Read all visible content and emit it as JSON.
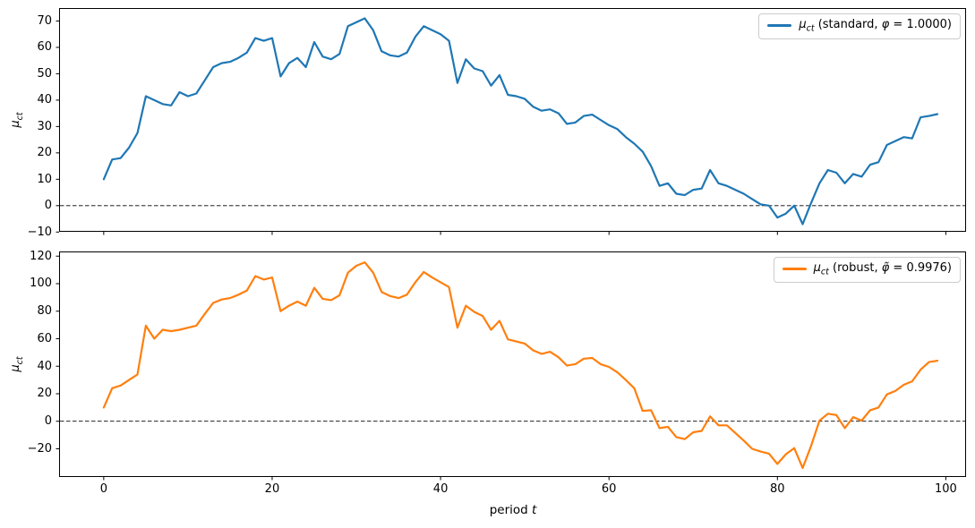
{
  "figure": {
    "background": "#ffffff",
    "text_color": "#000000",
    "axis_color": "#000000"
  },
  "xaxis": {
    "label_pre": "period ",
    "label_var": "t",
    "tick_labels": [
      "0",
      "20",
      "40",
      "60",
      "80",
      "100"
    ]
  },
  "chart_data": [
    {
      "type": "line",
      "title": "",
      "ylabel": "μ_ct",
      "ylabel_parts": {
        "mu": "μ",
        "sub": "ct"
      },
      "xlabel": "period t",
      "legend_label": "μ_ct (standard, φ = 1.0000)",
      "legend_parts": {
        "mu": "μ",
        "sub": "ct",
        "pre": " (standard, ",
        "phi": "φ",
        "post": " = 1.0000)"
      },
      "legend_position": "upper right",
      "grid": false,
      "zero_line": true,
      "zero_line_style": "dashed",
      "x_start": 0,
      "x_step": 1,
      "xlim": [
        -5.3,
        102.4
      ],
      "ylim": [
        -9.9,
        74.9
      ],
      "xticks": [
        0,
        20,
        40,
        60,
        80,
        100
      ],
      "yticks": [
        70,
        60,
        50,
        40,
        30,
        20,
        10,
        0,
        -10
      ],
      "ytick_labels": [
        "70",
        "60",
        "50",
        "40",
        "30",
        "20",
        "10",
        "0",
        "−10"
      ],
      "series": [
        {
          "name": "μ_ct (standard, φ = 1.0000)",
          "color": "#1f77b4",
          "values": [
            10,
            17.5,
            18,
            22,
            27.5,
            41.5,
            40,
            38.5,
            38,
            43,
            41.5,
            42.5,
            47.5,
            52.5,
            54,
            54.5,
            56,
            58,
            63.5,
            62.5,
            63.5,
            49,
            54,
            56,
            52.5,
            62,
            56.5,
            55.5,
            57.5,
            68,
            69.5,
            71,
            66.5,
            58.5,
            57,
            56.5,
            58,
            64,
            68,
            66.5,
            65,
            62.5,
            46.5,
            55.5,
            52,
            51,
            45.5,
            49.5,
            42,
            41.5,
            40.5,
            37.5,
            36,
            36.5,
            35,
            31,
            31.5,
            34,
            34.5,
            32.5,
            30.5,
            29,
            26,
            23.5,
            20.5,
            15,
            7.5,
            8.5,
            4.5,
            4,
            6,
            6.5,
            13.5,
            8.5,
            7.5,
            6,
            4.5,
            2.5,
            0.5,
            0,
            -4.5,
            -3,
            0,
            -7,
            1,
            8.5,
            13.5,
            12.5,
            8.5,
            12,
            11,
            15.5,
            16.5,
            23,
            24.5,
            26,
            25.5,
            33.5,
            34,
            34.7
          ]
        }
      ]
    },
    {
      "type": "line",
      "title": "",
      "ylabel": "μ_ct",
      "ylabel_parts": {
        "mu": "μ",
        "sub": "ct"
      },
      "xlabel": "period t",
      "legend_label": "μ_ct (robust, φ̃ = 0.9976)",
      "legend_parts": {
        "mu": "μ",
        "sub": "ct",
        "pre": " (robust, ",
        "phi": "φ̃",
        "post": " = 0.9976)"
      },
      "legend_position": "upper right",
      "grid": false,
      "zero_line": true,
      "zero_line_style": "dashed",
      "x_start": 0,
      "x_step": 1,
      "xlim": [
        -5.3,
        102.4
      ],
      "ylim": [
        -40.5,
        123.4
      ],
      "xticks": [
        0,
        20,
        40,
        60,
        80,
        100
      ],
      "yticks": [
        120,
        100,
        80,
        60,
        40,
        20,
        0,
        -20
      ],
      "ytick_labels": [
        "120",
        "100",
        "80",
        "60",
        "40",
        "20",
        "0",
        "−20"
      ],
      "series": [
        {
          "name": "μ_ct (robust, φ̃ = 0.9976)",
          "color": "#ff7f0e",
          "values": [
            10,
            24,
            26,
            30,
            34,
            69.5,
            60,
            66.5,
            65.5,
            66.5,
            68,
            69.5,
            78,
            86,
            88.5,
            89.5,
            92,
            95,
            105.5,
            103,
            104.5,
            80,
            84,
            87,
            84,
            97,
            89,
            88,
            91.5,
            108,
            113,
            115.5,
            108,
            94,
            91,
            89.5,
            92,
            101,
            108.5,
            104.5,
            101,
            97.5,
            68,
            84,
            79.5,
            76.5,
            66.5,
            73,
            59.5,
            58,
            56.5,
            51.5,
            49,
            50.5,
            46.5,
            40.5,
            41.5,
            45.5,
            46,
            41.5,
            39.5,
            35.5,
            30,
            24,
            7.5,
            8,
            -5,
            -4,
            -11.5,
            -13,
            -8,
            -7,
            3.5,
            -3,
            -3,
            -8.5,
            -14,
            -20,
            -22,
            -23.5,
            -31,
            -24,
            -19.5,
            -34,
            -18,
            0.5,
            5.5,
            4.5,
            -5,
            3,
            0.5,
            8,
            10,
            19.5,
            22,
            26.5,
            29,
            37.5,
            43,
            44
          ]
        }
      ]
    }
  ]
}
